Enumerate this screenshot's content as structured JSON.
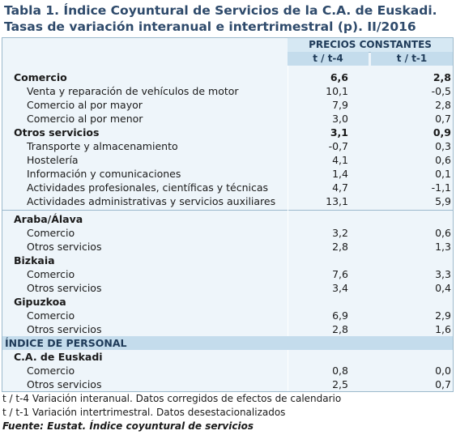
{
  "title_line1": "Tabla 1. Índice Coyuntural de Servicios de la C.A. de Euskadi.",
  "title_line2": "Tasas de variación interanual e intertrimestral (p).  II/2016",
  "header_group": "PRECIOS CONSTANTES",
  "col1": "t / t-4",
  "col2": "t / t-1",
  "rows_block1": [
    {
      "label": "Comercio",
      "v1": "6,6",
      "v2": "2,8",
      "bold": true
    },
    {
      "label": "Venta y reparación de vehículos de motor",
      "v1": "10,1",
      "v2": "-0,5",
      "bold": false
    },
    {
      "label": "Comercio al por mayor",
      "v1": "7,9",
      "v2": "2,8",
      "bold": false
    },
    {
      "label": "Comercio al por menor",
      "v1": "3,0",
      "v2": "0,7",
      "bold": false
    },
    {
      "label": "Otros servicios",
      "v1": "3,1",
      "v2": "0,9",
      "bold": true
    },
    {
      "label": "Transporte y almacenamiento",
      "v1": "-0,7",
      "v2": "0,3",
      "bold": false
    },
    {
      "label": "Hostelería",
      "v1": "4,1",
      "v2": "0,6",
      "bold": false
    },
    {
      "label": "Información y comunicaciones",
      "v1": "1,4",
      "v2": "0,1",
      "bold": false
    },
    {
      "label": "Actividades profesionales, científicas y técnicas",
      "v1": "4,7",
      "v2": "-1,1",
      "bold": false
    },
    {
      "label": "Actividades administrativas y servicios auxiliares",
      "v1": "13,1",
      "v2": "5,9",
      "bold": false
    }
  ],
  "rows_block2": [
    {
      "label": "Araba/Álava",
      "v1": "",
      "v2": "",
      "bold": true
    },
    {
      "label": "Comercio",
      "v1": "3,2",
      "v2": "0,6",
      "bold": false
    },
    {
      "label": "Otros servicios",
      "v1": "2,8",
      "v2": "1,3",
      "bold": false
    },
    {
      "label": "Bizkaia",
      "v1": "",
      "v2": "",
      "bold": true
    },
    {
      "label": "Comercio",
      "v1": "7,6",
      "v2": "3,3",
      "bold": false
    },
    {
      "label": "Otros servicios",
      "v1": "3,4",
      "v2": "0,4",
      "bold": false
    },
    {
      "label": "Gipuzkoa",
      "v1": "",
      "v2": "",
      "bold": true
    },
    {
      "label": "Comercio",
      "v1": "6,9",
      "v2": "2,9",
      "bold": false
    },
    {
      "label": "Otros servicios",
      "v1": "2,8",
      "v2": "1,6",
      "bold": false
    }
  ],
  "section_personal": "ÍNDICE DE PERSONAL",
  "rows_block3": [
    {
      "label": "C.A. de Euskadi",
      "v1": "",
      "v2": "",
      "bold": true
    },
    {
      "label": "Comercio",
      "v1": "0,8",
      "v2": "0,0",
      "bold": false
    },
    {
      "label": "Otros servicios",
      "v1": "2,5",
      "v2": "0,7",
      "bold": false
    }
  ],
  "note1": "t / t-4 Variación interanual. Datos corregidos de efectos de calendario",
  "note2": "t / t-1 Variación intertrimestral. Datos desestacionalizados",
  "source": "Fuente: Eustat. Índice coyuntural de servicios",
  "colors": {
    "title": "#2e4a6b",
    "header_bg": "#c4dcec",
    "table_bg": "#eef5fa",
    "border": "#9cb9cc"
  }
}
